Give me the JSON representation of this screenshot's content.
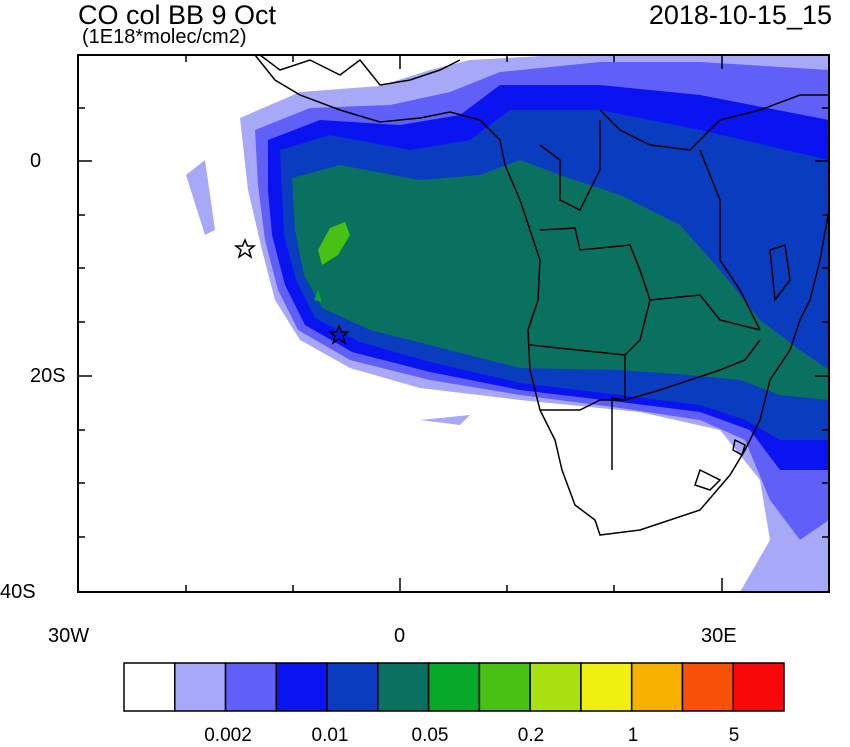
{
  "title": {
    "left": "CO col BB 9 Oct",
    "units": "(1E18*molec/cm2)",
    "right": "2018-10-15_15"
  },
  "axes": {
    "lat_labels": [
      "0",
      "20S",
      "40S"
    ],
    "lon_labels": [
      "30W",
      "0",
      "30E"
    ],
    "lat_range": [
      -40,
      10
    ],
    "lon_range": [
      -30,
      40
    ]
  },
  "map": {
    "region": "Southern Africa / South Atlantic",
    "markers": [
      {
        "name": "star-marker-st-helena",
        "lon": -14.6,
        "lat": -8
      },
      {
        "name": "star-marker-ascension",
        "lon": -5.7,
        "lat": -16
      }
    ]
  },
  "colorbar": {
    "colors": [
      "#ffffff",
      "#a8a8f8",
      "#6060f8",
      "#0a14f0",
      "#0a3cc0",
      "#0a7060",
      "#08a82a",
      "#48c014",
      "#a8e010",
      "#f0f010",
      "#f8b000",
      "#f85008",
      "#f80808"
    ],
    "labels": [
      "0.002",
      "0.01",
      "0.05",
      "0.2",
      "1",
      "5"
    ]
  }
}
